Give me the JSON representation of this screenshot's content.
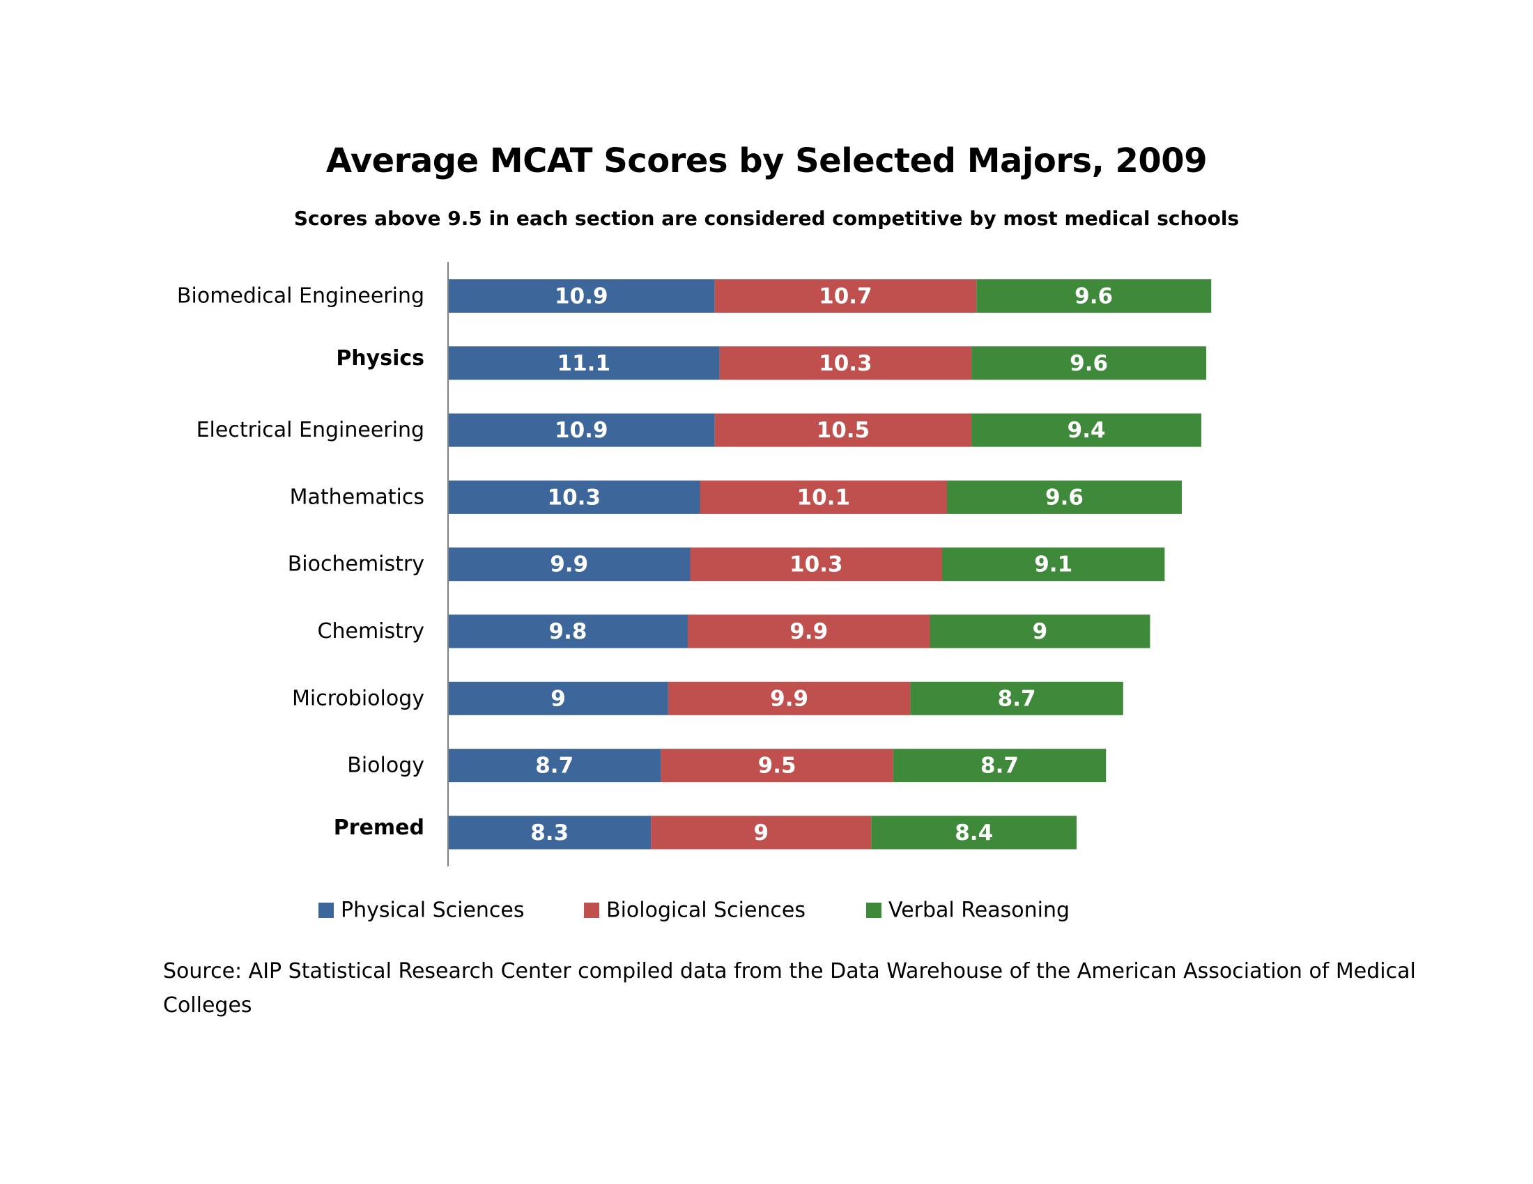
{
  "chart_data": {
    "type": "bar",
    "orientation": "horizontal",
    "stacked": true,
    "title": "Average MCAT Scores by Selected Majors, 2009",
    "subtitle": "Scores above 9.5 in each section are considered competitive by most medical schools",
    "xlabel": "",
    "ylabel": "",
    "xlim": [
      0,
      32
    ],
    "grid": false,
    "legend_position": "bottom",
    "categories": [
      "Biomedical Engineering",
      "Physics",
      "Electrical Engineering",
      "Mathematics",
      "Biochemistry",
      "Chemistry",
      "Microbiology",
      "Biology",
      "Premed"
    ],
    "highlighted_categories": [
      "Physics",
      "Premed"
    ],
    "highlight_color": "#e00000",
    "series": [
      {
        "name": "Physical Sciences",
        "color": "#3d679a",
        "values": [
          10.9,
          11.1,
          10.9,
          10.3,
          9.9,
          9.8,
          9,
          8.7,
          8.3
        ]
      },
      {
        "name": "Biological Sciences",
        "color": "#c0504d",
        "values": [
          10.7,
          10.3,
          10.5,
          10.1,
          10.3,
          9.9,
          9.9,
          9.5,
          9
        ]
      },
      {
        "name": "Verbal Reasoning",
        "color": "#3f8a3a",
        "values": [
          9.6,
          9.6,
          9.4,
          9.6,
          9.1,
          9,
          8.7,
          8.7,
          8.4
        ]
      }
    ]
  },
  "source": "Source: AIP Statistical Research Center compiled data from the Data Warehouse of the American Association of Medical Colleges"
}
